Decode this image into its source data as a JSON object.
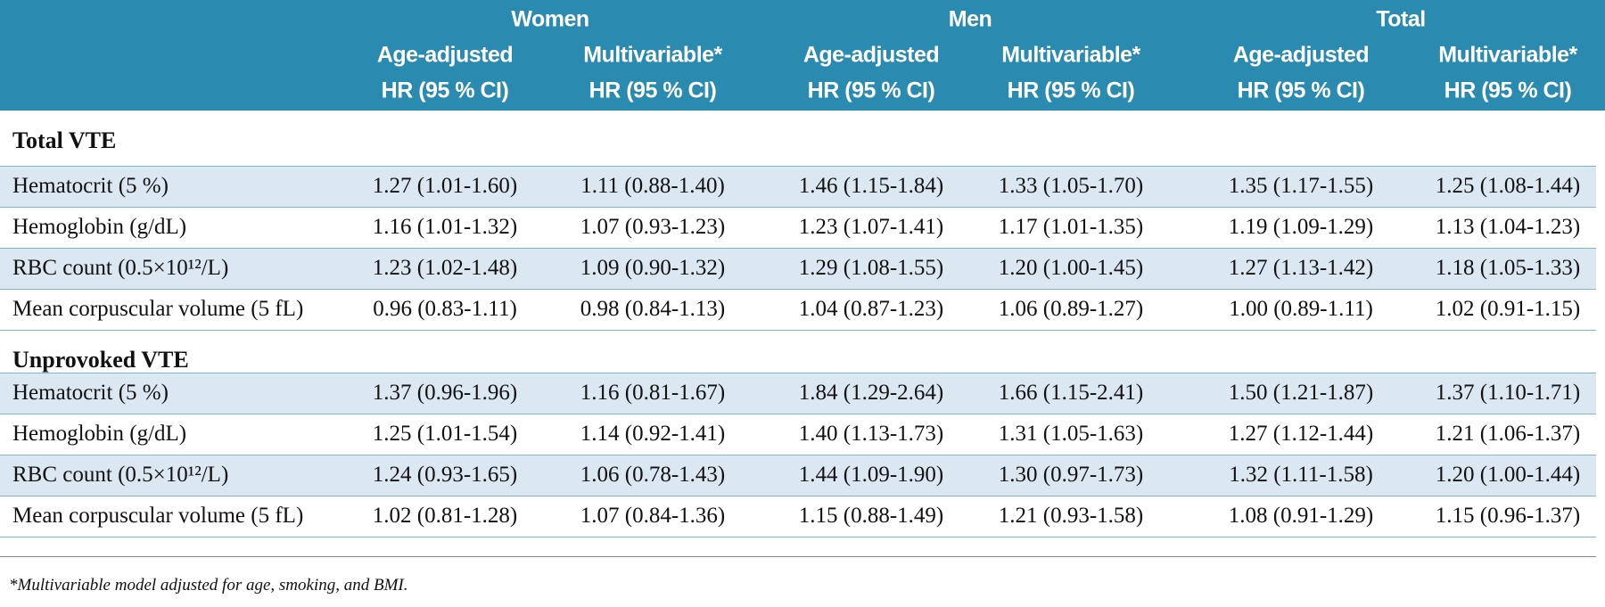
{
  "table": {
    "groups": [
      "Women",
      "Men",
      "Total"
    ],
    "subheaders": [
      [
        "Age-adjusted",
        "HR (95 % CI)"
      ],
      [
        "Multivariable*",
        "HR (95 % CI)"
      ],
      [
        "Age-adjusted",
        "HR (95 % CI)"
      ],
      [
        "Multivariable*",
        "HR (95 % CI)"
      ],
      [
        "Age-adjusted",
        "HR (95 % CI)"
      ],
      [
        "Multivariable*",
        "HR (95 % CI)"
      ]
    ],
    "sections": [
      {
        "title": "Total VTE",
        "rows": [
          [
            "Hematocrit (5 %)",
            "1.27 (1.01-1.60)",
            "1.11 (0.88-1.40)",
            "1.46 (1.15-1.84)",
            "1.33 (1.05-1.70)",
            "1.35 (1.17-1.55)",
            "1.25 (1.08-1.44)"
          ],
          [
            "Hemoglobin (g/dL)",
            "1.16 (1.01-1.32)",
            "1.07 (0.93-1.23)",
            "1.23 (1.07-1.41)",
            "1.17 (1.01-1.35)",
            "1.19 (1.09-1.29)",
            "1.13 (1.04-1.23)"
          ],
          [
            "RBC count (0.5×10¹²/L)",
            "1.23 (1.02-1.48)",
            "1.09 (0.90-1.32)",
            "1.29 (1.08-1.55)",
            "1.20 (1.00-1.45)",
            "1.27 (1.13-1.42)",
            "1.18 (1.05-1.33)"
          ],
          [
            "Mean corpuscular volume (5 fL)",
            "0.96 (0.83-1.11)",
            "0.98 (0.84-1.13)",
            "1.04 (0.87-1.23)",
            "1.06 (0.89-1.27)",
            "1.00 (0.89-1.11)",
            "1.02 (0.91-1.15)"
          ]
        ]
      },
      {
        "title": "Unprovoked VTE",
        "rows": [
          [
            "Hematocrit (5 %)",
            "1.37 (0.96-1.96)",
            "1.16 (0.81-1.67)",
            "1.84 (1.29-2.64)",
            "1.66 (1.15-2.41)",
            "1.50 (1.21-1.87)",
            "1.37 (1.10-1.71)"
          ],
          [
            "Hemoglobin (g/dL)",
            "1.25 (1.01-1.54)",
            "1.14 (0.92-1.41)",
            "1.40 (1.13-1.73)",
            "1.31 (1.05-1.63)",
            "1.27 (1.12-1.44)",
            "1.21 (1.06-1.37)"
          ],
          [
            "RBC count (0.5×10¹²/L)",
            "1.24 (0.93-1.65)",
            "1.06 (0.78-1.43)",
            "1.44 (1.09-1.90)",
            "1.30 (0.97-1.73)",
            "1.32 (1.11-1.58)",
            "1.20 (1.00-1.44)"
          ],
          [
            "Mean corpuscular volume (5 fL)",
            "1.02 (0.81-1.28)",
            "1.07 (0.84-1.36)",
            "1.15 (0.88-1.49)",
            "1.21 (0.93-1.58)",
            "1.08 (0.91-1.29)",
            "1.15 (0.96-1.37)"
          ]
        ]
      }
    ],
    "footnote": "*Multivariable model adjusted for age, smoking, and BMI."
  }
}
